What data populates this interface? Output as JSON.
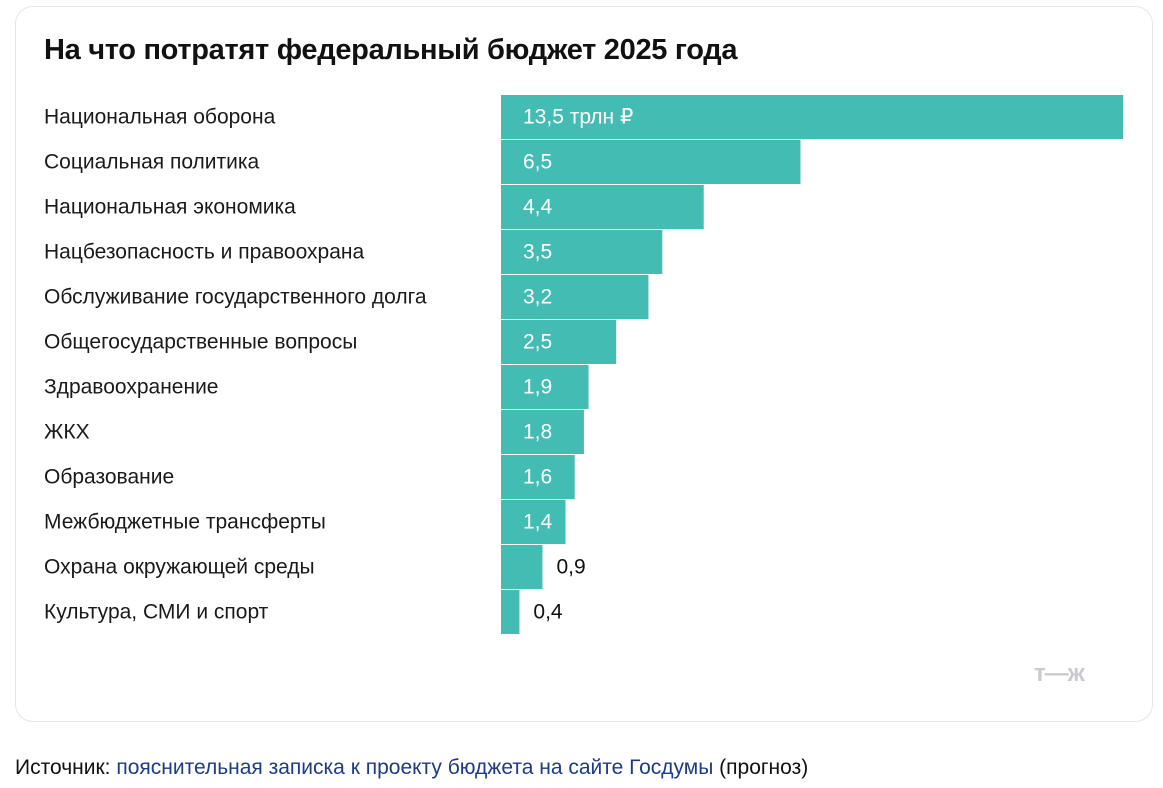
{
  "title": "На что потратят федеральный бюджет 2025 года",
  "logo": "т—ж",
  "source": {
    "prefix": "Источник: ",
    "link_text": "пояснительная записка к проекту бюджета на сайте Госдумы",
    "suffix": " (прогноз)"
  },
  "colors": {
    "bar": "#43bdb3",
    "label_inside": "#ffffff",
    "label_outside": "#111111"
  },
  "chart_data": {
    "type": "bar",
    "orientation": "horizontal",
    "title": "На что потратят федеральный бюджет 2025 года",
    "unit": "трлн ₽",
    "categories": [
      "Национальная оборона",
      "Социальная политика",
      "Национальная экономика",
      "Нацбезопасность и правоохрана",
      "Обслуживание государственного долга",
      "Общегосударственные вопросы",
      "Здравоохранение",
      "ЖКХ",
      "Образование",
      "Межбюджетные трансферты",
      "Охрана окружающей среды",
      "Культура, СМИ и спорт"
    ],
    "values": [
      13.5,
      6.5,
      4.4,
      3.5,
      3.2,
      2.5,
      1.9,
      1.8,
      1.6,
      1.4,
      0.9,
      0.4
    ],
    "value_labels": [
      "13,5 трлн ₽",
      "6,5",
      "4,4",
      "3,5",
      "3,2",
      "2,5",
      "1,9",
      "1,8",
      "1,6",
      "1,4",
      "0,9",
      "0,4"
    ],
    "xlim": [
      0,
      13.5
    ],
    "grid": false,
    "legend": "none"
  }
}
